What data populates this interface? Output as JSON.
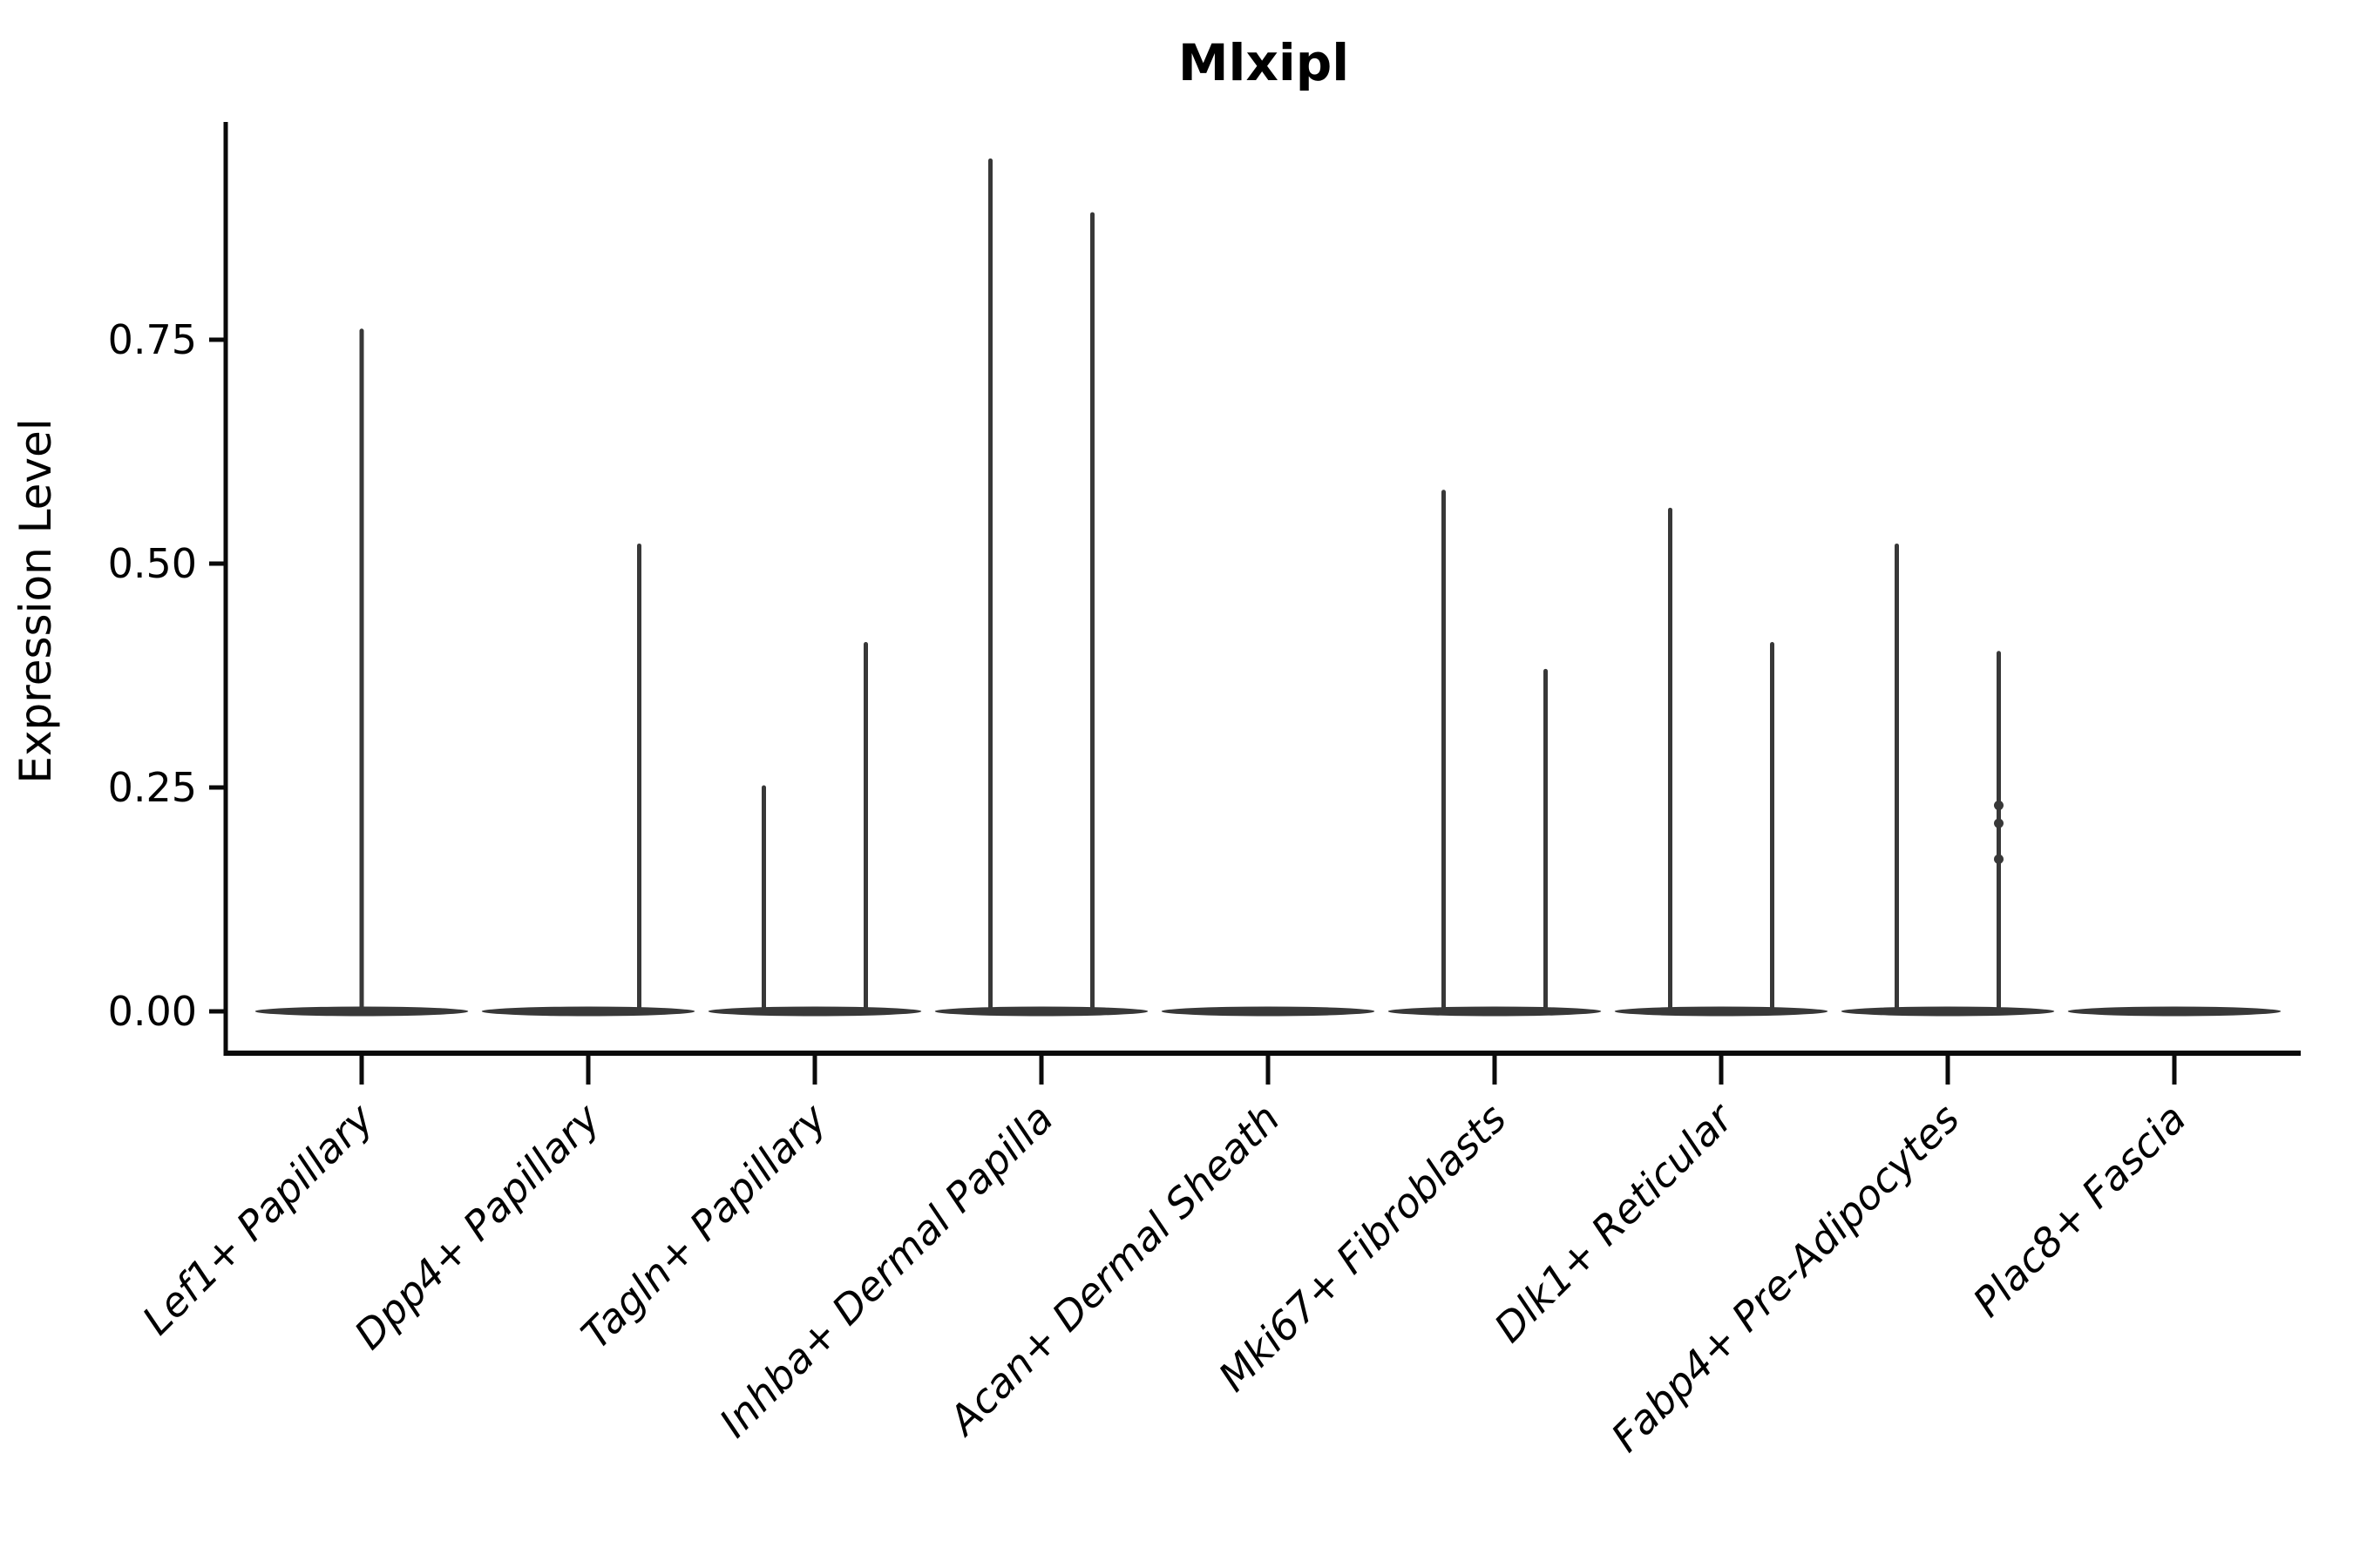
{
  "figure": {
    "background": "#ffffff"
  },
  "chart_data": {
    "type": "violin",
    "title": "Mlxipl",
    "xlabel": "",
    "ylabel": "Expression Level",
    "yticks": [
      0.0,
      0.25,
      0.5,
      0.75
    ],
    "ytick_labels": [
      "0.00",
      "0.25",
      "0.50",
      "0.75"
    ],
    "ylim": [
      0,
      0.99
    ],
    "grid": false,
    "legend": "none",
    "x_label_angle": 45,
    "categories": [
      "Lef1+ Papillary",
      "Dpp4+ Papillary",
      "Tagln+ Papillary",
      "Inhba+ Dermal Papilla",
      "Acan+ Dermal Sheath",
      "Mki67+ Fibroblasts",
      "Dlk1+ Reticular",
      "Fabp4+ Pre-Adipocytes",
      "Plac8+ Fascia"
    ],
    "violins": [
      {
        "category": "Lef1+ Papillary",
        "spikes": [
          {
            "position": "center",
            "max": 0.76
          }
        ]
      },
      {
        "category": "Dpp4+ Papillary",
        "spikes": [
          {
            "position": "right",
            "max": 0.52
          }
        ]
      },
      {
        "category": "Tagln+ Papillary",
        "spikes": [
          {
            "position": "left",
            "max": 0.25
          },
          {
            "position": "right",
            "max": 0.41
          }
        ]
      },
      {
        "category": "Inhba+ Dermal Papilla",
        "spikes": [
          {
            "position": "left",
            "max": 0.95
          },
          {
            "position": "right",
            "max": 0.89
          }
        ]
      },
      {
        "category": "Acan+ Dermal Sheath",
        "spikes": []
      },
      {
        "category": "Mki67+ Fibroblasts",
        "spikes": [
          {
            "position": "left",
            "max": 0.58
          },
          {
            "position": "right",
            "max": 0.38
          }
        ]
      },
      {
        "category": "Dlk1+ Reticular",
        "spikes": [
          {
            "position": "left",
            "max": 0.56
          },
          {
            "position": "right",
            "max": 0.41
          }
        ]
      },
      {
        "category": "Fabp4+ Pre-Adipocytes",
        "spikes": [
          {
            "position": "left",
            "max": 0.52
          },
          {
            "position": "right",
            "max": 0.4,
            "points": [
              0.23,
              0.21,
              0.17
            ]
          }
        ]
      },
      {
        "category": "Plac8+ Fascia",
        "spikes": []
      }
    ],
    "style": {
      "violin_color": "#383838",
      "axis_color": "#0a0a0a",
      "text_color": "#000000",
      "x_label_style": "italic"
    }
  }
}
